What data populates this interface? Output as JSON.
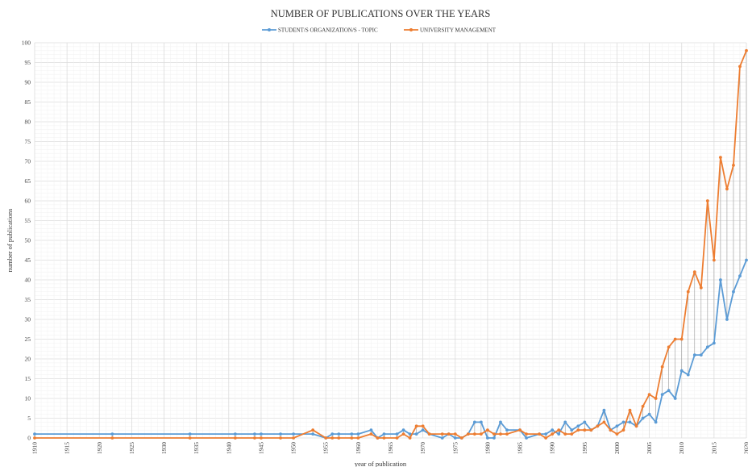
{
  "chart_data": {
    "type": "line",
    "title": "NUMBER OF PUBLICATIONS OVER THE YEARS",
    "xlabel": "year of publication",
    "ylabel": "number of publications",
    "xlim": [
      1910,
      2020
    ],
    "ylim": [
      0,
      100
    ],
    "x_ticks": [
      1910,
      1915,
      1920,
      1925,
      1930,
      1935,
      1940,
      1945,
      1950,
      1955,
      1960,
      1965,
      1970,
      1975,
      1980,
      1985,
      1990,
      1995,
      2000,
      2005,
      2010,
      2015,
      2020
    ],
    "y_ticks": [
      0,
      5,
      10,
      15,
      20,
      25,
      30,
      35,
      40,
      45,
      50,
      55,
      60,
      65,
      70,
      75,
      80,
      85,
      90,
      95,
      100
    ],
    "grid": true,
    "legend_position": "top",
    "drop_lines_between_series": true,
    "series": [
      {
        "name": "STUDENT/S ORGANIZATION/S  - TOPIC",
        "color": "#5b9bd5",
        "points": [
          [
            1910,
            1
          ],
          [
            1922,
            1
          ],
          [
            1934,
            1
          ],
          [
            1941,
            1
          ],
          [
            1944,
            1
          ],
          [
            1945,
            1
          ],
          [
            1948,
            1
          ],
          [
            1950,
            1
          ],
          [
            1953,
            1
          ],
          [
            1955,
            0
          ],
          [
            1956,
            1
          ],
          [
            1957,
            1
          ],
          [
            1959,
            1
          ],
          [
            1960,
            1
          ],
          [
            1962,
            2
          ],
          [
            1963,
            0
          ],
          [
            1964,
            1
          ],
          [
            1966,
            1
          ],
          [
            1967,
            2
          ],
          [
            1968,
            1
          ],
          [
            1969,
            1
          ],
          [
            1970,
            2
          ],
          [
            1971,
            1
          ],
          [
            1973,
            0
          ],
          [
            1974,
            1
          ],
          [
            1975,
            0
          ],
          [
            1976,
            0
          ],
          [
            1977,
            1
          ],
          [
            1978,
            4
          ],
          [
            1979,
            4
          ],
          [
            1980,
            0
          ],
          [
            1981,
            0
          ],
          [
            1982,
            4
          ],
          [
            1983,
            2
          ],
          [
            1985,
            2
          ],
          [
            1986,
            0
          ],
          [
            1988,
            1
          ],
          [
            1989,
            1
          ],
          [
            1990,
            2
          ],
          [
            1991,
            1
          ],
          [
            1992,
            4
          ],
          [
            1993,
            2
          ],
          [
            1994,
            3
          ],
          [
            1995,
            4
          ],
          [
            1996,
            2
          ],
          [
            1997,
            3
          ],
          [
            1998,
            7
          ],
          [
            1999,
            2
          ],
          [
            2000,
            3
          ],
          [
            2001,
            4
          ],
          [
            2002,
            4
          ],
          [
            2003,
            3
          ],
          [
            2004,
            5
          ],
          [
            2005,
            6
          ],
          [
            2006,
            4
          ],
          [
            2007,
            11
          ],
          [
            2008,
            12
          ],
          [
            2009,
            10
          ],
          [
            2010,
            17
          ],
          [
            2011,
            16
          ],
          [
            2012,
            21
          ],
          [
            2013,
            21
          ],
          [
            2014,
            23
          ],
          [
            2015,
            24
          ],
          [
            2016,
            40
          ],
          [
            2017,
            30
          ],
          [
            2018,
            37
          ],
          [
            2019,
            41
          ],
          [
            2020,
            45
          ]
        ]
      },
      {
        "name": "UNIVERSITY MANAGEMENT",
        "color": "#ed7d31",
        "points": [
          [
            1910,
            0
          ],
          [
            1922,
            0
          ],
          [
            1934,
            0
          ],
          [
            1941,
            0
          ],
          [
            1944,
            0
          ],
          [
            1945,
            0
          ],
          [
            1948,
            0
          ],
          [
            1950,
            0
          ],
          [
            1953,
            2
          ],
          [
            1955,
            0
          ],
          [
            1956,
            0
          ],
          [
            1957,
            0
          ],
          [
            1959,
            0
          ],
          [
            1960,
            0
          ],
          [
            1962,
            1
          ],
          [
            1963,
            0
          ],
          [
            1964,
            0
          ],
          [
            1966,
            0
          ],
          [
            1967,
            1
          ],
          [
            1968,
            0
          ],
          [
            1969,
            3
          ],
          [
            1970,
            3
          ],
          [
            1971,
            1
          ],
          [
            1973,
            1
          ],
          [
            1974,
            1
          ],
          [
            1975,
            1
          ],
          [
            1976,
            0
          ],
          [
            1977,
            1
          ],
          [
            1978,
            1
          ],
          [
            1979,
            1
          ],
          [
            1980,
            2
          ],
          [
            1981,
            1
          ],
          [
            1982,
            1
          ],
          [
            1983,
            1
          ],
          [
            1985,
            2
          ],
          [
            1986,
            1
          ],
          [
            1988,
            1
          ],
          [
            1989,
            0
          ],
          [
            1990,
            1
          ],
          [
            1991,
            2
          ],
          [
            1992,
            1
          ],
          [
            1993,
            1
          ],
          [
            1994,
            2
          ],
          [
            1995,
            2
          ],
          [
            1996,
            2
          ],
          [
            1997,
            3
          ],
          [
            1998,
            4
          ],
          [
            1999,
            2
          ],
          [
            2000,
            1
          ],
          [
            2001,
            2
          ],
          [
            2002,
            7
          ],
          [
            2003,
            3
          ],
          [
            2004,
            8
          ],
          [
            2005,
            11
          ],
          [
            2006,
            10
          ],
          [
            2007,
            18
          ],
          [
            2008,
            23
          ],
          [
            2009,
            25
          ],
          [
            2010,
            25
          ],
          [
            2011,
            37
          ],
          [
            2012,
            42
          ],
          [
            2013,
            38
          ],
          [
            2014,
            60
          ],
          [
            2015,
            45
          ],
          [
            2016,
            71
          ],
          [
            2017,
            63
          ],
          [
            2018,
            69
          ],
          [
            2019,
            94
          ],
          [
            2020,
            98
          ]
        ]
      }
    ]
  }
}
